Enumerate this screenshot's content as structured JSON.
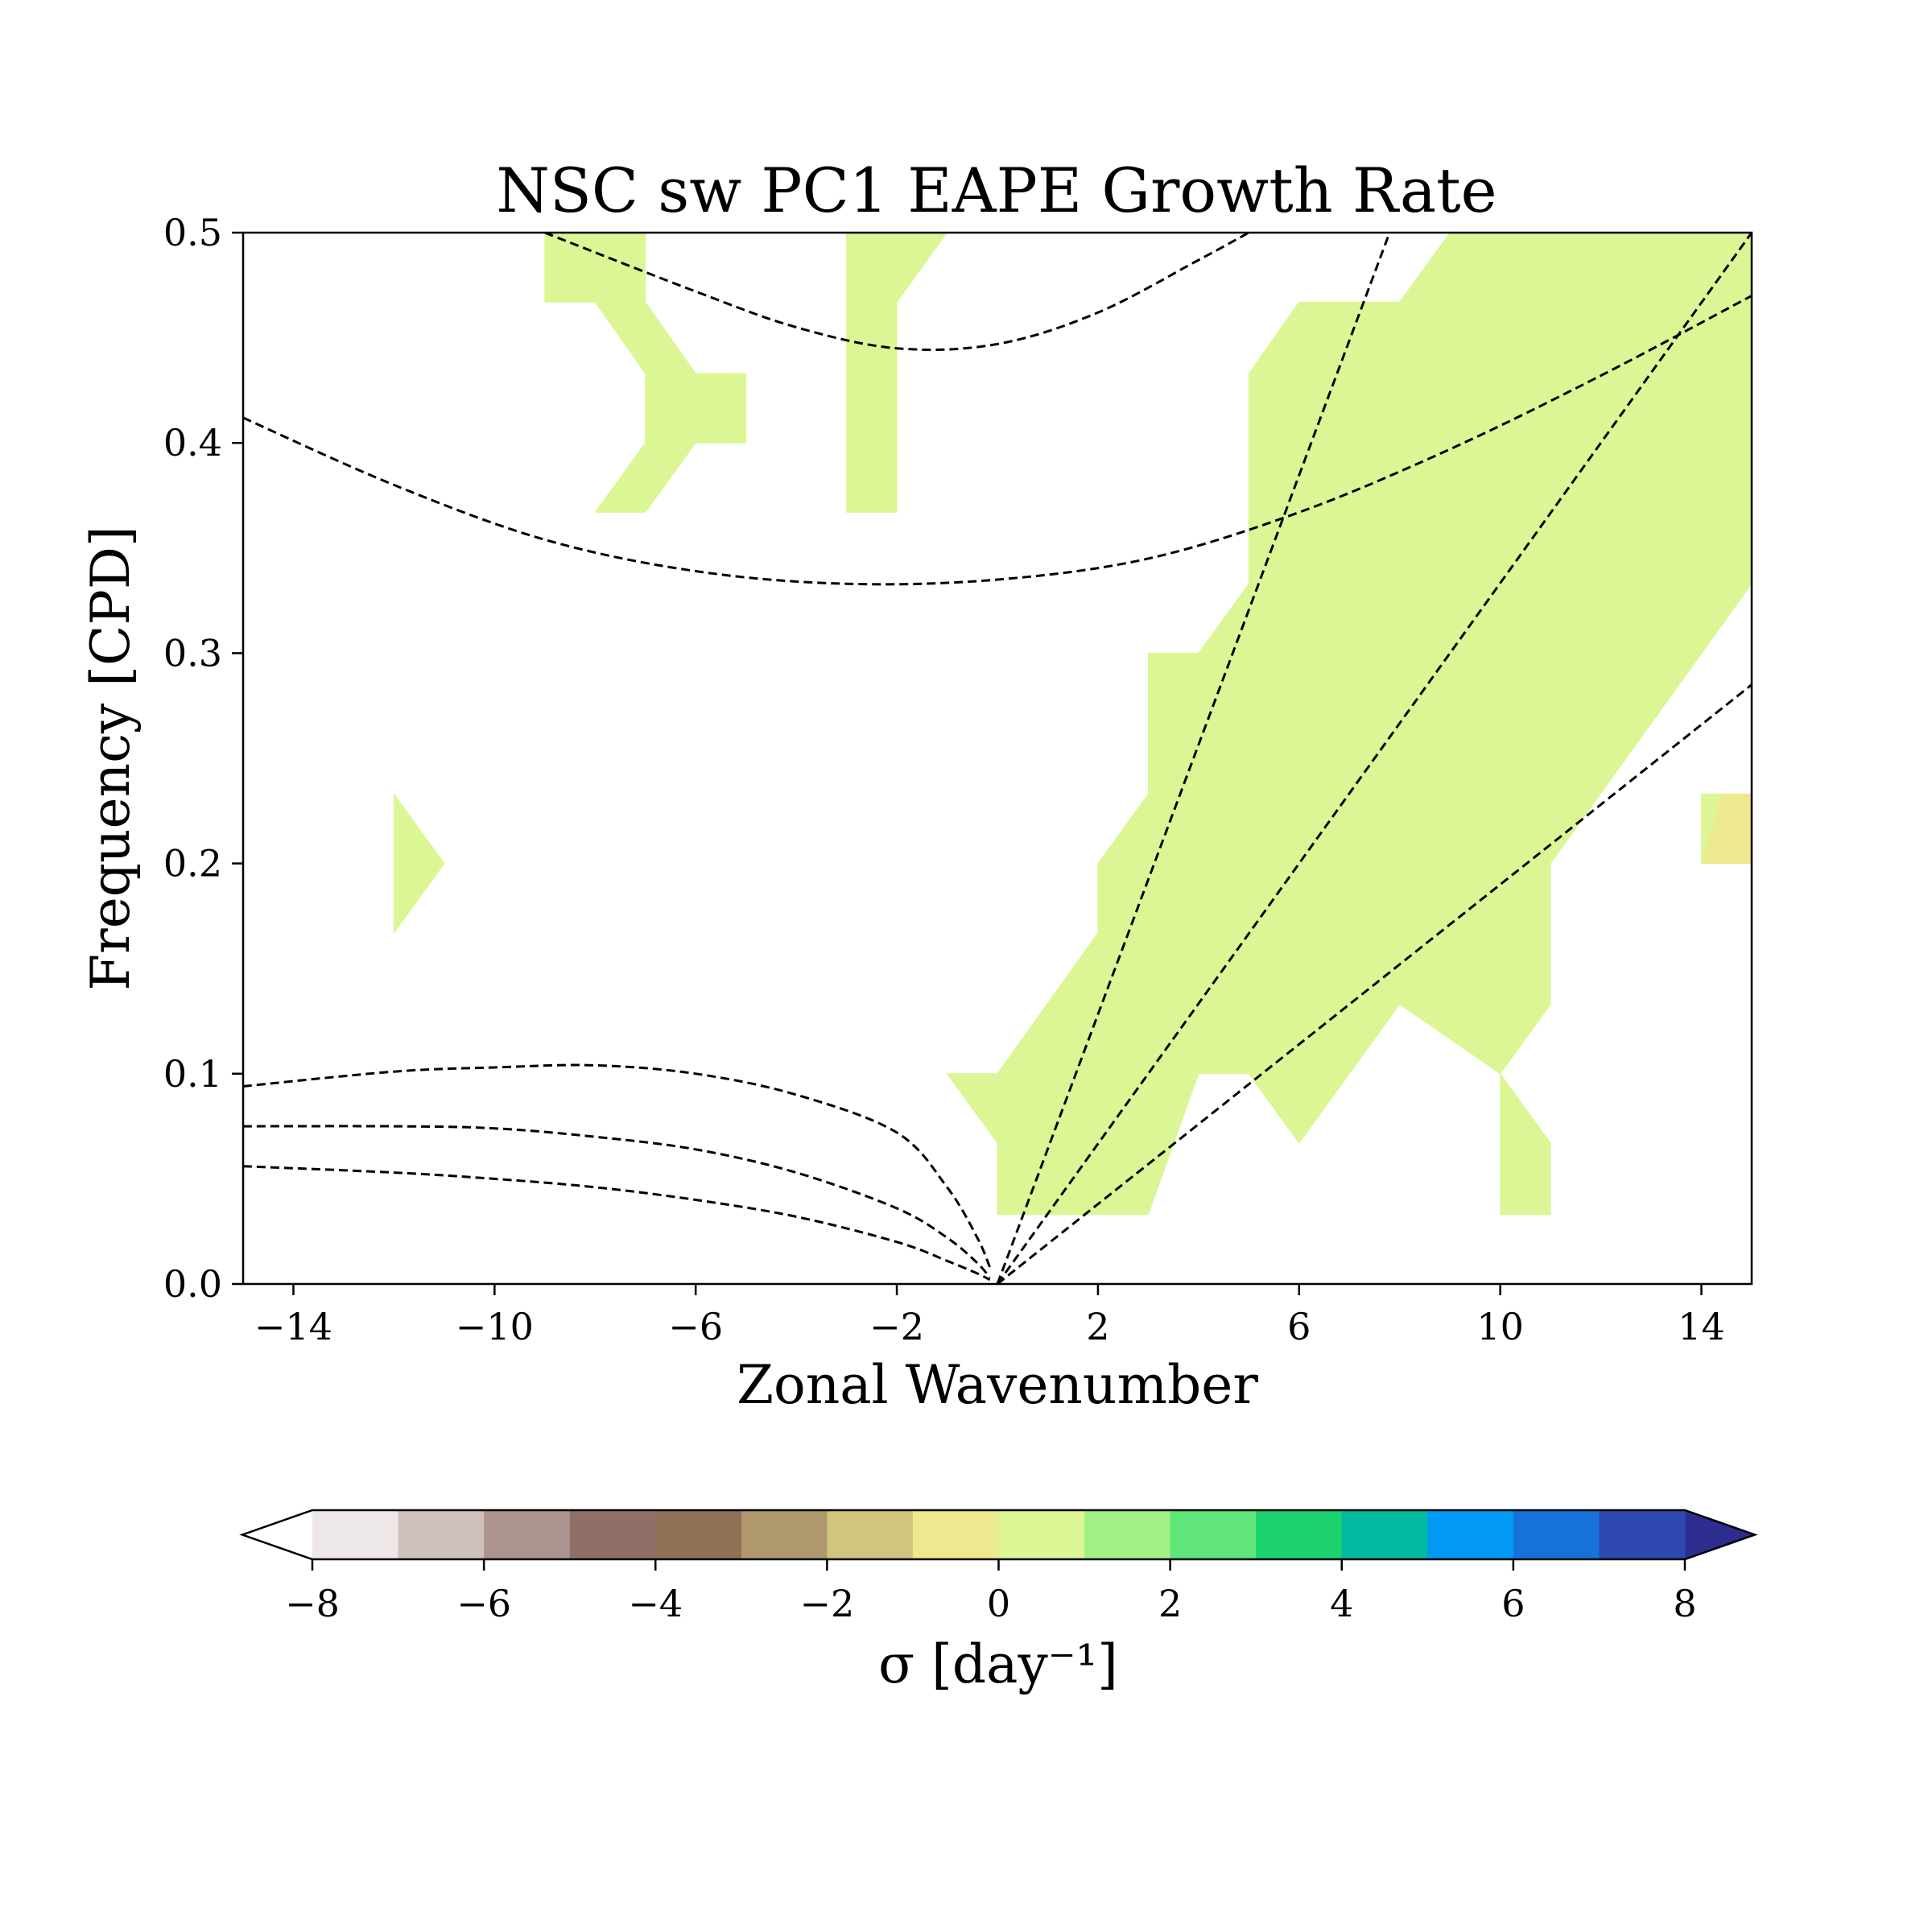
{
  "chart_data": {
    "type": "heatmap",
    "title": "NSC sw PC1 EAPE Growth Rate",
    "xlabel": "Zonal Wavenumber",
    "ylabel": "Frequency [CPD]",
    "xlim": [
      -15,
      15
    ],
    "ylim": [
      0,
      0.5
    ],
    "xticks": [
      -14,
      -10,
      -6,
      -2,
      2,
      6,
      10,
      14
    ],
    "xtick_labels": [
      "−14",
      "−10",
      "−6",
      "−2",
      "2",
      "6",
      "10",
      "14"
    ],
    "yticks": [
      0.0,
      0.1,
      0.2,
      0.3,
      0.4,
      0.5
    ],
    "ytick_labels": [
      "0.0",
      "0.1",
      "0.2",
      "0.3",
      "0.4",
      "0.5"
    ],
    "grid": false,
    "filled_regions": [
      {
        "level": "0 to 1",
        "color": "#dcf695",
        "polygon": [
          [
            -9,
            0.5
          ],
          [
            -7,
            0.5
          ],
          [
            -7,
            0.467
          ],
          [
            -6,
            0.433
          ],
          [
            -5,
            0.433
          ],
          [
            -5,
            0.4
          ],
          [
            -6,
            0.4
          ],
          [
            -7,
            0.367
          ],
          [
            -8,
            0.367
          ],
          [
            -7,
            0.4
          ],
          [
            -7,
            0.433
          ],
          [
            -8,
            0.467
          ],
          [
            -9,
            0.467
          ]
        ]
      },
      {
        "level": "0 to 1",
        "color": "#dcf695",
        "polygon": [
          [
            -2,
            0.5
          ],
          [
            -1,
            0.5
          ],
          [
            -2,
            0.467
          ],
          [
            -2,
            0.367
          ],
          [
            -3,
            0.367
          ],
          [
            -3,
            0.5
          ]
        ]
      },
      {
        "level": "0 to 1",
        "color": "#dcf695",
        "polygon": [
          [
            -12,
            0.233
          ],
          [
            -11,
            0.2
          ],
          [
            -12,
            0.167
          ]
        ]
      },
      {
        "level": "0 to 1",
        "color": "#dcf695",
        "polygon": [
          [
            9,
            0.5
          ],
          [
            15,
            0.5
          ],
          [
            15,
            0.333
          ],
          [
            11,
            0.2
          ],
          [
            11,
            0.133
          ],
          [
            10,
            0.1
          ],
          [
            11,
            0.067
          ],
          [
            11,
            0.033
          ],
          [
            10,
            0.033
          ],
          [
            10,
            0.1
          ],
          [
            8,
            0.133
          ],
          [
            6,
            0.067
          ],
          [
            5,
            0.1
          ],
          [
            4,
            0.1
          ],
          [
            3,
            0.033
          ],
          [
            1,
            0.033
          ],
          [
            0,
            0.033
          ],
          [
            0,
            0.067
          ],
          [
            -1,
            0.1
          ],
          [
            0,
            0.1
          ],
          [
            2,
            0.167
          ],
          [
            2,
            0.2
          ],
          [
            3,
            0.233
          ],
          [
            3,
            0.3
          ],
          [
            4,
            0.3
          ],
          [
            5,
            0.333
          ],
          [
            5,
            0.433
          ],
          [
            6,
            0.467
          ],
          [
            8,
            0.467
          ]
        ]
      },
      {
        "level": "-1 to 0",
        "color": "#ece98f",
        "polygon": [
          [
            14,
            0.2
          ],
          [
            15,
            0.2
          ],
          [
            15,
            0.233
          ],
          [
            14.4,
            0.233
          ]
        ]
      },
      {
        "level": "0 to 1",
        "color": "#dcf695",
        "polygon": [
          [
            14,
            0.233
          ],
          [
            14.4,
            0.233
          ],
          [
            14,
            0.2
          ]
        ]
      }
    ],
    "dispersion_curves": [
      {
        "points": [
          [
            -9,
            0.5
          ],
          [
            -6,
            0.472
          ],
          [
            -4,
            0.455
          ],
          [
            -2,
            0.445
          ],
          [
            0,
            0.447
          ],
          [
            2,
            0.462
          ],
          [
            4,
            0.487
          ],
          [
            5,
            0.5
          ]
        ]
      },
      {
        "points": [
          [
            -15,
            0.412
          ],
          [
            -12,
            0.38
          ],
          [
            -9,
            0.354
          ],
          [
            -6,
            0.339
          ],
          [
            -3,
            0.333
          ],
          [
            0,
            0.335
          ],
          [
            3,
            0.345
          ],
          [
            6,
            0.367
          ],
          [
            9,
            0.397
          ],
          [
            12,
            0.432
          ],
          [
            15,
            0.47
          ]
        ]
      },
      {
        "points": [
          [
            -15,
            0.094
          ],
          [
            -12,
            0.101
          ],
          [
            -10,
            0.103
          ],
          [
            -8,
            0.104
          ],
          [
            -6,
            0.1
          ],
          [
            -4,
            0.09
          ],
          [
            -2,
            0.072
          ],
          [
            -1,
            0.046
          ],
          [
            -0.4,
            0.022
          ],
          [
            -0.15,
            0.008
          ]
        ]
      },
      {
        "points": [
          [
            -15,
            0.075
          ],
          [
            -12,
            0.075
          ],
          [
            -10,
            0.074
          ],
          [
            -8,
            0.07
          ],
          [
            -6,
            0.064
          ],
          [
            -4,
            0.053
          ],
          [
            -2,
            0.036
          ],
          [
            -1,
            0.022
          ],
          [
            -0.4,
            0.01
          ],
          [
            -0.15,
            0.003
          ]
        ]
      },
      {
        "points": [
          [
            -15,
            0.056
          ],
          [
            -12,
            0.053
          ],
          [
            -10,
            0.05
          ],
          [
            -8,
            0.046
          ],
          [
            -6,
            0.04
          ],
          [
            -4,
            0.032
          ],
          [
            -2,
            0.02
          ],
          [
            -1,
            0.011
          ],
          [
            -0.4,
            0.005
          ],
          [
            -0.15,
            0.002
          ]
        ]
      },
      {
        "points": [
          [
            0,
            0
          ],
          [
            7.8,
            0.5
          ]
        ]
      },
      {
        "points": [
          [
            0,
            0
          ],
          [
            15,
            0.5
          ]
        ]
      },
      {
        "points": [
          [
            0,
            0
          ],
          [
            15,
            0.285
          ]
        ]
      }
    ],
    "colorbar": {
      "label": "σ [day⁻¹]",
      "levels": [
        -8,
        -7,
        -6,
        -5,
        -4,
        -3,
        -2,
        -1,
        0,
        1,
        2,
        3,
        4,
        5,
        6,
        7,
        8
      ],
      "ticks": [
        -8,
        -6,
        -4,
        -2,
        0,
        2,
        4,
        6,
        8
      ],
      "tick_labels": [
        "−8",
        "−6",
        "−4",
        "−2",
        "0",
        "2",
        "4",
        "6",
        "8"
      ],
      "colors": [
        "#ede8e7",
        "#cfc0bc",
        "#ab958e",
        "#8f7067",
        "#8f7158",
        "#af986b",
        "#d0c57f",
        "#ece98f",
        "#dcf695",
        "#a2ef86",
        "#60e57a",
        "#1cd26e",
        "#00bba0",
        "#0199f5",
        "#1672d9",
        "#2d48b1"
      ],
      "under_color": "#ffffff",
      "over_color": "#2c2d8f",
      "extend": "both"
    }
  }
}
